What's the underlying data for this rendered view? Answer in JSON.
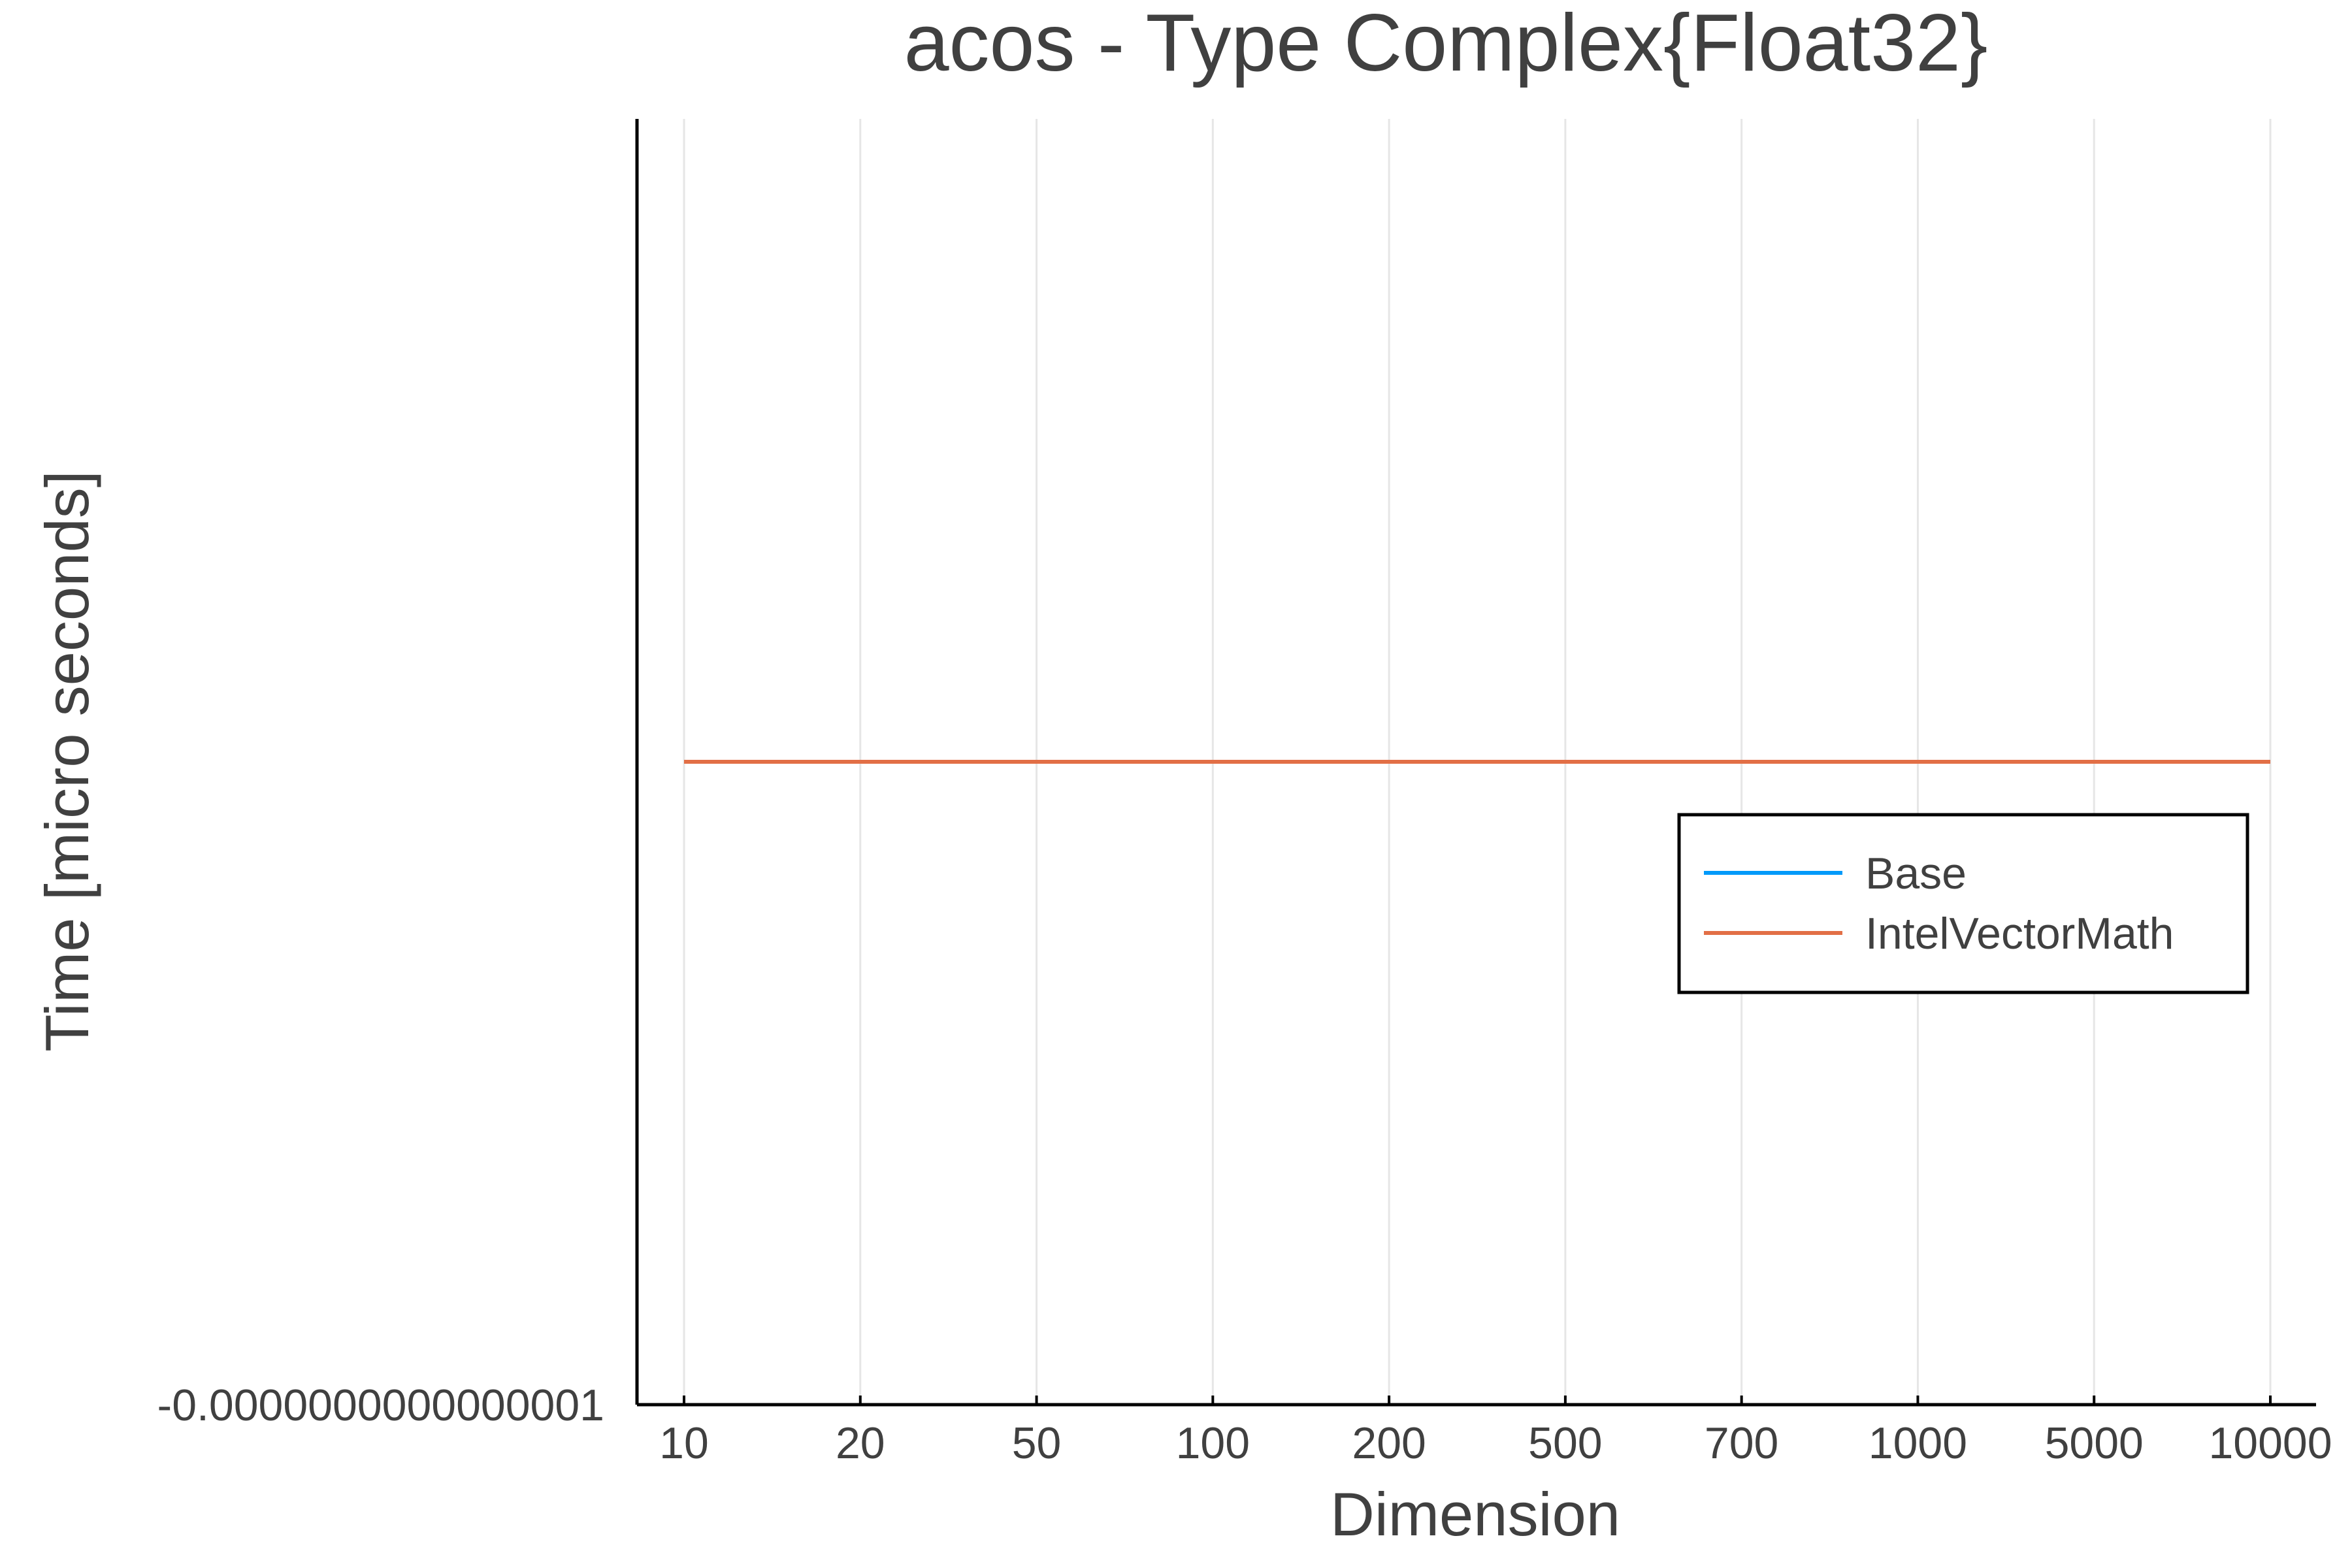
{
  "chart_data": {
    "type": "line",
    "title": "acos - Type Complex{Float32}",
    "xlabel": "Dimension",
    "ylabel": "Time [micro seconds]",
    "categories": [
      "10",
      "20",
      "50",
      "100",
      "200",
      "500",
      "700",
      "1000",
      "5000",
      "10000"
    ],
    "yticks": [
      "-0.0000000000000001"
    ],
    "grid": true,
    "legend_position": "right",
    "series": [
      {
        "name": "Base",
        "color": "#009AFA",
        "values": [
          0,
          0,
          0,
          0,
          0,
          0,
          0,
          0,
          0,
          0
        ]
      },
      {
        "name": "IntelVectorMath",
        "color": "#E26F46",
        "values": [
          0,
          0,
          0,
          0,
          0,
          0,
          0,
          0,
          0,
          0
        ]
      }
    ]
  }
}
